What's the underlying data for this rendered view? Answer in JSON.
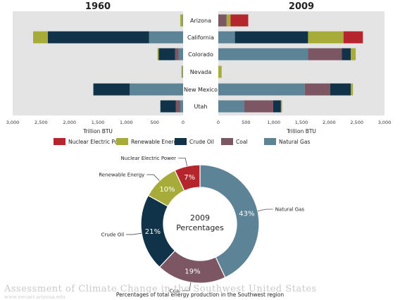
{
  "chart_data": [
    {
      "type": "bar",
      "orientation": "horizontal",
      "stacked": true,
      "title": "1960",
      "xlabel": "Trillion BTU",
      "xlim": [
        0,
        3000
      ],
      "x_direction": "reversed",
      "xticks": [
        "3,000",
        "2,500",
        "2,000",
        "1,500",
        "1,000",
        "500",
        "0"
      ],
      "categories": [
        "Arizona",
        "California",
        "Colorado",
        "Nevada",
        "New Mexico",
        "Utah"
      ],
      "series": [
        {
          "name": "Natural Gas",
          "values": [
            10,
            600,
            80,
            10,
            940,
            50
          ]
        },
        {
          "name": "Coal",
          "values": [
            0,
            0,
            60,
            0,
            0,
            80
          ]
        },
        {
          "name": "Crude Oil",
          "values": [
            0,
            1780,
            290,
            0,
            640,
            270
          ]
        },
        {
          "name": "Renewable Energy",
          "values": [
            40,
            260,
            20,
            20,
            0,
            0
          ]
        },
        {
          "name": "Nuclear Electric Power",
          "values": [
            0,
            0,
            0,
            0,
            0,
            0
          ]
        }
      ]
    },
    {
      "type": "bar",
      "orientation": "horizontal",
      "stacked": true,
      "title": "2009",
      "xlabel": "Trillion BTU",
      "xlim": [
        0,
        3000
      ],
      "xticks": [
        "0",
        "500",
        "1,000",
        "1,500",
        "2,000",
        "2,500",
        "3,000"
      ],
      "categories": [
        "Arizona",
        "California",
        "Colorado",
        "Nevada",
        "New Mexico",
        "Utah"
      ],
      "series": [
        {
          "name": "Natural Gas",
          "values": [
            0,
            300,
            1620,
            0,
            1560,
            470
          ]
        },
        {
          "name": "Coal",
          "values": [
            150,
            0,
            610,
            0,
            460,
            520
          ]
        },
        {
          "name": "Crude Oil",
          "values": [
            0,
            1320,
            160,
            0,
            370,
            140
          ]
        },
        {
          "name": "Renewable Energy",
          "values": [
            70,
            640,
            90,
            60,
            40,
            20
          ]
        },
        {
          "name": "Nuclear Electric Power",
          "values": [
            320,
            350,
            0,
            0,
            0,
            0
          ]
        }
      ]
    },
    {
      "type": "pie",
      "donut": true,
      "center_label": [
        "2009",
        "Percentages"
      ],
      "caption": "Percentages of total energy production in the Southwest region",
      "labels": [
        "Natural Gas",
        "Coal",
        "Crude Oil",
        "Renewable Energy",
        "Nuclear Electric Power"
      ],
      "values": [
        43,
        19,
        21,
        10,
        7
      ],
      "value_labels": [
        "43%",
        "19%",
        "21%",
        "10%",
        "7%"
      ]
    }
  ],
  "legend": {
    "placement": "below-bars",
    "items": [
      {
        "label": "Nuclear Electric Power",
        "color": "#b5252c"
      },
      {
        "label": "Renewable Energy",
        "color": "#a6ab3a"
      },
      {
        "label": "Crude Oil",
        "color": "#10334a"
      },
      {
        "label": "Coal",
        "color": "#7d5663"
      },
      {
        "label": "Natural Gas",
        "color": "#5d8396"
      }
    ]
  },
  "colors": {
    "Natural Gas": "#5d8396",
    "Coal": "#7d5663",
    "Crude Oil": "#10334a",
    "Renewable Energy": "#a6ab3a",
    "Nuclear Electric Power": "#b5252c",
    "panel_background": "#e4e4e4"
  },
  "credit": {
    "title": "Assessment of Climate Change in the Southwest United States",
    "url": "www.swcarr.arizona.edu"
  }
}
